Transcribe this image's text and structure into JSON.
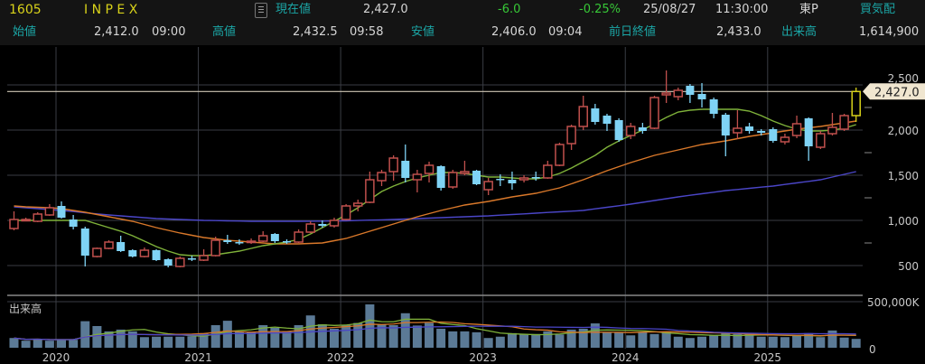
{
  "header": {
    "code": "1605",
    "name": "I N P E X",
    "current_label": "現在値",
    "current_value": "2,427.0",
    "change": "-6.0",
    "change_pct": "-0.25%",
    "date": "25/08/27",
    "time": "11:30:00",
    "market": "東P",
    "bid_ask_label": "買気配",
    "open_label": "始値",
    "open_value": "2,412.0",
    "open_time": "09:00",
    "high_label": "高値",
    "high_value": "2,432.5",
    "high_time": "09:58",
    "low_label": "安値",
    "low_value": "2,406.0",
    "low_time": "09:04",
    "prev_close_label": "前日終値",
    "prev_close_value": "2,433.0",
    "volume_label": "出来高",
    "volume_value": "1,614,900",
    "doc_icon": "document-icon"
  },
  "colors": {
    "up": "#c0504d",
    "down": "#7fd3f5",
    "current": "#d8d21a",
    "ma_short": "#7fb23a",
    "ma_mid": "#d9782a",
    "ma_long": "#4b46c8",
    "volume_bar": "#5b7a96",
    "price_tag": "#f0e6d0"
  },
  "chart_data": {
    "type": "candlestick",
    "interval": "monthly",
    "x_ticks": [
      "2020",
      "2021",
      "2022",
      "2023",
      "2024",
      "2025"
    ],
    "price_axis": {
      "ticks": [
        "500",
        "1,000",
        "1,500",
        "2,000",
        "2,500"
      ],
      "range": [
        400,
        2600
      ]
    },
    "current_price_label": "2,427.0",
    "ohlc": [
      [
        910,
        1100,
        890,
        1010
      ],
      [
        1000,
        1030,
        990,
        1010
      ],
      [
        990,
        1090,
        980,
        1070
      ],
      [
        1060,
        1180,
        1050,
        1140
      ],
      [
        1160,
        1210,
        1020,
        1030
      ],
      [
        1010,
        1060,
        900,
        930
      ],
      [
        910,
        930,
        490,
        610
      ],
      [
        600,
        700,
        590,
        690
      ],
      [
        690,
        780,
        680,
        760
      ],
      [
        760,
        830,
        650,
        660
      ],
      [
        670,
        680,
        590,
        600
      ],
      [
        600,
        700,
        590,
        670
      ],
      [
        670,
        680,
        550,
        560
      ],
      [
        570,
        580,
        480,
        500
      ],
      [
        490,
        600,
        480,
        580
      ],
      [
        580,
        610,
        550,
        565
      ],
      [
        560,
        680,
        550,
        610
      ],
      [
        610,
        820,
        600,
        780
      ],
      [
        780,
        840,
        740,
        760
      ],
      [
        760,
        790,
        730,
        750
      ],
      [
        760,
        800,
        740,
        770
      ],
      [
        770,
        880,
        760,
        830
      ],
      [
        850,
        860,
        750,
        770
      ],
      [
        770,
        790,
        740,
        760
      ],
      [
        760,
        900,
        750,
        870
      ],
      [
        870,
        990,
        860,
        960
      ],
      [
        960,
        1000,
        920,
        940
      ],
      [
        940,
        1030,
        920,
        1000
      ],
      [
        1010,
        1180,
        1000,
        1160
      ],
      [
        1160,
        1230,
        1100,
        1190
      ],
      [
        1200,
        1540,
        1190,
        1450
      ],
      [
        1440,
        1560,
        1380,
        1530
      ],
      [
        1540,
        1720,
        1440,
        1690
      ],
      [
        1660,
        1840,
        1420,
        1470
      ],
      [
        1450,
        1560,
        1310,
        1510
      ],
      [
        1520,
        1650,
        1420,
        1610
      ],
      [
        1600,
        1610,
        1330,
        1360
      ],
      [
        1370,
        1560,
        1350,
        1530
      ],
      [
        1520,
        1660,
        1500,
        1540
      ],
      [
        1550,
        1560,
        1390,
        1400
      ],
      [
        1340,
        1470,
        1280,
        1430
      ],
      [
        1460,
        1510,
        1380,
        1450
      ],
      [
        1450,
        1540,
        1340,
        1410
      ],
      [
        1450,
        1500,
        1420,
        1470
      ],
      [
        1480,
        1540,
        1440,
        1470
      ],
      [
        1470,
        1660,
        1460,
        1610
      ],
      [
        1610,
        1860,
        1600,
        1840
      ],
      [
        1850,
        2060,
        1780,
        2040
      ],
      [
        2040,
        2380,
        2000,
        2260
      ],
      [
        2240,
        2290,
        2060,
        2090
      ],
      [
        2160,
        2180,
        1990,
        2070
      ],
      [
        2110,
        2130,
        1870,
        1890
      ],
      [
        1940,
        2080,
        1900,
        2040
      ],
      [
        2030,
        2080,
        1960,
        1990
      ],
      [
        2020,
        2380,
        2010,
        2360
      ],
      [
        2390,
        2660,
        2300,
        2410
      ],
      [
        2370,
        2470,
        2330,
        2440
      ],
      [
        2490,
        2510,
        2300,
        2390
      ],
      [
        2400,
        2520,
        2250,
        2340
      ],
      [
        2340,
        2360,
        2130,
        2180
      ],
      [
        2170,
        2190,
        1710,
        1940
      ],
      [
        1970,
        2220,
        1900,
        2020
      ],
      [
        2040,
        2080,
        1960,
        1990
      ],
      [
        1990,
        2010,
        1940,
        1970
      ],
      [
        2010,
        2030,
        1860,
        1880
      ],
      [
        1870,
        1960,
        1840,
        1920
      ],
      [
        1940,
        2160,
        1910,
        2070
      ],
      [
        2130,
        2140,
        1660,
        1820
      ],
      [
        1810,
        1990,
        1790,
        1960
      ],
      [
        1960,
        2190,
        1940,
        2030
      ],
      [
        2010,
        2180,
        1990,
        2160
      ],
      [
        2160,
        2470,
        2090,
        2427
      ]
    ],
    "ma_short": [
      1000,
      1000,
      1000,
      1000,
      1000,
      1000,
      1000,
      960,
      920,
      880,
      830,
      770,
      710,
      660,
      620,
      610,
      610,
      620,
      640,
      660,
      690,
      720,
      740,
      760,
      790,
      850,
      920,
      990,
      1060,
      1140,
      1230,
      1320,
      1380,
      1430,
      1470,
      1500,
      1530,
      1530,
      1520,
      1500,
      1480,
      1480,
      1470,
      1460,
      1460,
      1480,
      1520,
      1580,
      1650,
      1720,
      1810,
      1880,
      1940,
      2000,
      2070,
      2140,
      2200,
      2220,
      2230,
      2230,
      2230,
      2230,
      2210,
      2160,
      2100,
      2050,
      2010,
      1990,
      1990,
      2000,
      2020,
      2060
    ],
    "ma_mid": [
      1160,
      1150,
      1145,
      1140,
      1130,
      1110,
      1090,
      1065,
      1040,
      1015,
      990,
      955,
      920,
      890,
      860,
      835,
      810,
      795,
      780,
      770,
      760,
      750,
      740,
      740,
      740,
      745,
      750,
      775,
      800,
      840,
      880,
      920,
      960,
      1000,
      1040,
      1075,
      1110,
      1140,
      1170,
      1190,
      1210,
      1235,
      1260,
      1280,
      1300,
      1330,
      1360,
      1405,
      1450,
      1500,
      1550,
      1595,
      1640,
      1680,
      1720,
      1750,
      1780,
      1810,
      1840,
      1860,
      1880,
      1905,
      1930,
      1950,
      1970,
      1990,
      2010,
      2025,
      2040,
      2060,
      2080,
      2100
    ],
    "ma_long": [
      1150,
      1140,
      1130,
      1120,
      1110,
      1098,
      1085,
      1072,
      1060,
      1050,
      1040,
      1030,
      1020,
      1015,
      1010,
      1005,
      1000,
      998,
      995,
      993,
      990,
      990,
      990,
      990,
      990,
      991,
      992,
      994,
      995,
      999,
      1003,
      1006,
      1010,
      1015,
      1020,
      1025,
      1030,
      1035,
      1040,
      1045,
      1050,
      1058,
      1065,
      1072,
      1080,
      1088,
      1095,
      1102,
      1110,
      1128,
      1145,
      1162,
      1180,
      1200,
      1220,
      1240,
      1260,
      1278,
      1295,
      1312,
      1330,
      1342,
      1355,
      1368,
      1380,
      1398,
      1415,
      1432,
      1450,
      1480,
      1510,
      1540
    ],
    "volume_label": "出来高",
    "volume_axis": {
      "ticks": [
        "0",
        "500,000K"
      ],
      "max_k": 500000
    },
    "volume_k": [
      110000,
      80000,
      100000,
      80000,
      90000,
      90000,
      300000,
      245000,
      185000,
      205000,
      185000,
      120000,
      125000,
      125000,
      125000,
      130000,
      165000,
      255000,
      305000,
      185000,
      175000,
      255000,
      225000,
      185000,
      255000,
      365000,
      265000,
      215000,
      255000,
      280000,
      490000,
      265000,
      255000,
      390000,
      251000,
      280000,
      215000,
      185000,
      185000,
      175000,
      110000,
      125000,
      165000,
      155000,
      155000,
      185000,
      150000,
      205000,
      215000,
      275000,
      175000,
      175000,
      140000,
      175000,
      155000,
      185000,
      125000,
      110000,
      125000,
      140000,
      165000,
      155000,
      155000,
      125000,
      125000,
      120000,
      140000,
      165000,
      120000,
      195000,
      115000,
      100000
    ]
  }
}
